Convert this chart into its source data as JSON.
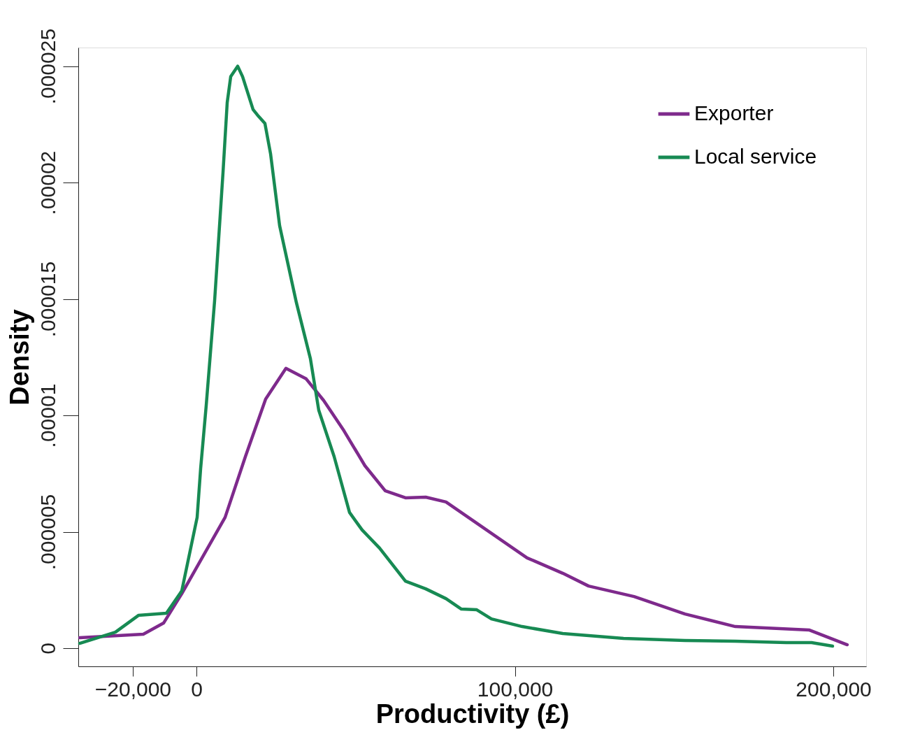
{
  "chart_data": {
    "type": "line",
    "xlabel": "Productivity (£)",
    "ylabel": "Density",
    "xlim": [
      -37100,
      210300
    ],
    "ylim": [
      -7.8e-07,
      2.58e-05
    ],
    "xticks": [
      {
        "value": -20000,
        "label": "−20,000"
      },
      {
        "value": 0,
        "label": "0"
      },
      {
        "value": 100000,
        "label": "100,000"
      },
      {
        "value": 200000,
        "label": "200,000"
      }
    ],
    "yticks": [
      {
        "value": 0,
        "label": "0"
      },
      {
        "value": 5e-06,
        "label": ".000005"
      },
      {
        "value": 1e-05,
        "label": ".00001"
      },
      {
        "value": 1.5e-05,
        "label": ".000015"
      },
      {
        "value": 2e-05,
        "label": ".00002"
      },
      {
        "value": 2.5e-05,
        "label": ".000025"
      }
    ],
    "grid": false,
    "legend": "top right",
    "line_style": "solid",
    "marker": "none",
    "series": [
      {
        "name": "Exporter",
        "color": "#7e2a8c",
        "x": [
          -36660,
          -16680,
          -10320,
          -4610,
          1760,
          9000,
          15370,
          21730,
          28100,
          34460,
          39950,
          46320,
          52900,
          59270,
          65630,
          72000,
          78360,
          91090,
          103820,
          115020,
          123140,
          137410,
          153430,
          169230,
          192500,
          204350
        ],
        "values": [
          4.5e-07,
          6e-07,
          1.08e-06,
          2.34e-06,
          3.88e-06,
          5.62e-06,
          8.23e-06,
          1.07e-05,
          1.202e-05,
          1.157e-05,
          1.064e-05,
          9.34e-06,
          7.84e-06,
          6.76e-06,
          6.46e-06,
          6.49e-06,
          6.28e-06,
          5.08e-06,
          3.88e-06,
          3.22e-06,
          2.67e-06,
          2.22e-06,
          1.47e-06,
          9.3e-07,
          7.8e-07,
          1.5e-07
        ]
      },
      {
        "name": "Local service",
        "color": "#178a53",
        "x": [
          -36660,
          -25460,
          -18220,
          -9440,
          -4610,
          220,
          1320,
          3070,
          5710,
          8340,
          9660,
          10760,
          12950,
          14490,
          17780,
          19540,
          21510,
          23270,
          26120,
          31390,
          35780,
          38410,
          43240,
          48070,
          52020,
          57510,
          65630,
          72000,
          78360,
          83190,
          88020,
          92630,
          102290,
          115020,
          134110,
          153430,
          169230,
          185260,
          193160,
          199750
        ],
        "values": [
          2.1e-07,
          6.9e-07,
          1.41e-06,
          1.5e-06,
          2.46e-06,
          5.62e-06,
          7.72e-06,
          1.043e-05,
          1.493e-05,
          2.043e-05,
          2.344e-05,
          2.455e-05,
          2.5e-05,
          2.455e-05,
          2.314e-05,
          2.284e-05,
          2.254e-05,
          2.124e-05,
          1.815e-05,
          1.484e-05,
          1.244e-05,
          1.022e-05,
          8.23e-06,
          5.83e-06,
          5.08e-06,
          4.3e-06,
          2.88e-06,
          2.55e-06,
          2.13e-06,
          1.68e-06,
          1.65e-06,
          1.26e-06,
          9.3e-07,
          6.3e-07,
          4.2e-07,
          3.3e-07,
          3e-07,
          2.4e-07,
          2.4e-07,
          9e-08
        ]
      }
    ]
  }
}
